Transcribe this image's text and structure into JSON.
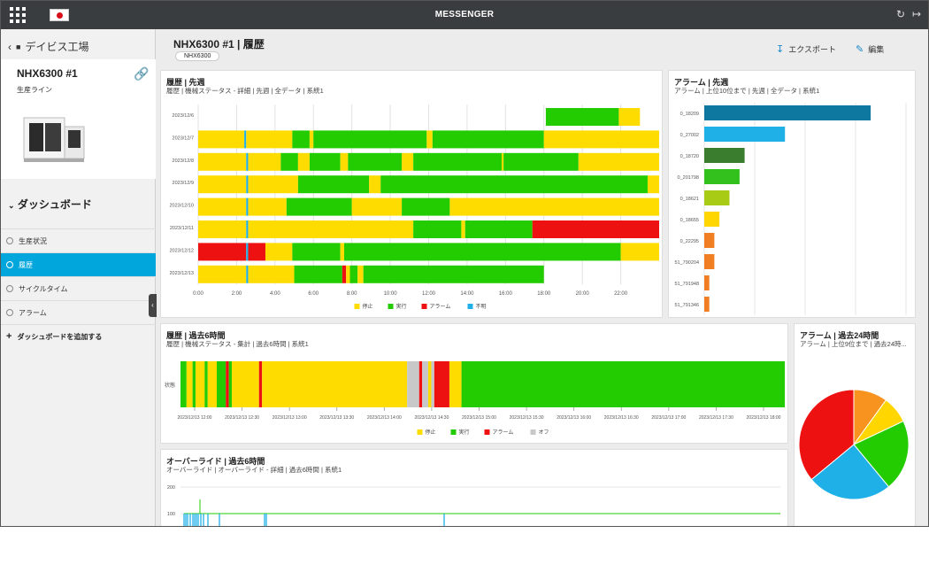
{
  "topbar": {
    "title": "MESSENGER",
    "refresh_icon": "refresh-icon",
    "logout_icon": "logout-icon"
  },
  "sidebar": {
    "back_label": "デイビス工場",
    "machine": {
      "name": "NHX6300 #1",
      "line": "生産ライン"
    },
    "dashboard_heading": "ダッシュボード",
    "items": [
      {
        "label": "生産状況",
        "active": false
      },
      {
        "label": "履歴",
        "active": true
      },
      {
        "label": "サイクルタイム",
        "active": false
      },
      {
        "label": "アラーム",
        "active": false
      }
    ],
    "add_label": "ダッシュボードを追加する"
  },
  "header": {
    "title": "NHX6300 #1 | 履歴",
    "tag": "NHX6300",
    "export_label": "エクスポート",
    "edit_label": "編集"
  },
  "colors": {
    "stop": "#ffdc00",
    "run": "#22cc00",
    "alarm": "#ee1111",
    "unknown": "#1fb0e8",
    "off": "#c8c8c8"
  },
  "panels": {
    "history_week": {
      "title": "履歴 | 先週",
      "subtitle": "履歴 | 機械ステータス - 詳細 | 先週 | 全データ | 系統1",
      "chart_data": {
        "type": "timeline",
        "dates": [
          "2023/12/6",
          "2023/12/7",
          "2023/12/8",
          "2023/12/9",
          "2023/12/10",
          "2023/12/11",
          "2023/12/12",
          "2023/12/13"
        ],
        "x_ticks": [
          "0:00",
          "2:00",
          "4:00",
          "6:00",
          "8:00",
          "10:00",
          "12:00",
          "14:00",
          "16:00",
          "18:00",
          "20:00",
          "22:00"
        ],
        "legend": [
          "停止",
          "実行",
          "アラーム",
          "不明"
        ],
        "rows": [
          [
            [
              "run",
              18.1,
              21.9
            ],
            [
              "stop",
              21.9,
              23.0
            ]
          ],
          [
            [
              "stop",
              0,
              2.4
            ],
            [
              "unknown",
              2.4,
              2.5
            ],
            [
              "stop",
              2.5,
              4.9
            ],
            [
              "run",
              4.9,
              5.8
            ],
            [
              "stop",
              5.8,
              6.0
            ],
            [
              "run",
              6.0,
              11.9
            ],
            [
              "stop",
              11.9,
              12.2
            ],
            [
              "run",
              12.2,
              18.0
            ],
            [
              "stop",
              18.0,
              24.0
            ]
          ],
          [
            [
              "stop",
              0,
              2.5
            ],
            [
              "unknown",
              2.5,
              2.6
            ],
            [
              "stop",
              2.6,
              4.3
            ],
            [
              "run",
              4.3,
              5.2
            ],
            [
              "stop",
              5.2,
              5.8
            ],
            [
              "run",
              5.8,
              7.4
            ],
            [
              "stop",
              7.4,
              7.8
            ],
            [
              "run",
              7.8,
              10.6
            ],
            [
              "stop",
              10.6,
              11.2
            ],
            [
              "run",
              11.2,
              15.8
            ],
            [
              "stop",
              15.8,
              15.9
            ],
            [
              "run",
              15.9,
              19.8
            ],
            [
              "stop",
              19.8,
              24.0
            ]
          ],
          [
            [
              "stop",
              0,
              2.5
            ],
            [
              "unknown",
              2.5,
              2.6
            ],
            [
              "stop",
              2.6,
              5.2
            ],
            [
              "run",
              5.2,
              8.9
            ],
            [
              "stop",
              8.9,
              9.5
            ],
            [
              "run",
              9.5,
              23.4
            ],
            [
              "stop",
              23.4,
              24.0
            ]
          ],
          [
            [
              "stop",
              0,
              2.5
            ],
            [
              "unknown",
              2.5,
              2.6
            ],
            [
              "stop",
              2.6,
              4.6
            ],
            [
              "run",
              4.6,
              8.0
            ],
            [
              "stop",
              8.0,
              10.6
            ],
            [
              "run",
              10.6,
              13.1
            ],
            [
              "stop",
              13.1,
              24.0
            ]
          ],
          [
            [
              "stop",
              0,
              2.5
            ],
            [
              "unknown",
              2.5,
              2.6
            ],
            [
              "stop",
              2.6,
              11.2
            ],
            [
              "run",
              11.2,
              13.7
            ],
            [
              "stop",
              13.7,
              13.9
            ],
            [
              "run",
              13.9,
              17.4
            ],
            [
              "alarm",
              17.4,
              24.0
            ]
          ],
          [
            [
              "alarm",
              0,
              2.5
            ],
            [
              "unknown",
              2.5,
              2.6
            ],
            [
              "alarm",
              2.6,
              3.5
            ],
            [
              "stop",
              3.5,
              4.9
            ],
            [
              "run",
              4.9,
              7.4
            ],
            [
              "stop",
              7.4,
              7.6
            ],
            [
              "run",
              7.6,
              22.0
            ],
            [
              "stop",
              22.0,
              24.0
            ]
          ],
          [
            [
              "stop",
              0,
              2.5
            ],
            [
              "unknown",
              2.5,
              2.6
            ],
            [
              "stop",
              2.6,
              5.0
            ],
            [
              "run",
              5.0,
              7.5
            ],
            [
              "alarm",
              7.5,
              7.7
            ],
            [
              "stop",
              7.7,
              7.9
            ],
            [
              "run",
              7.9,
              8.3
            ],
            [
              "stop",
              8.3,
              8.6
            ],
            [
              "run",
              8.6,
              18.0
            ]
          ]
        ]
      }
    },
    "alarm_week": {
      "title": "アラーム | 先週",
      "subtitle": "アラーム | 上位10位まで | 先週 | 全データ | 系統1",
      "chart_data": {
        "type": "bar",
        "orientation": "horizontal",
        "categories": [
          "0_18209",
          "0_27002",
          "0_18720",
          "0_201798",
          "0_18621",
          "0_18655",
          "0_22295",
          "51_790204",
          "51_791948",
          "51_791346"
        ],
        "values": [
          33,
          16,
          8,
          7,
          5,
          3,
          2,
          2,
          1,
          1
        ],
        "bar_colors": [
          "#0e78a0",
          "#1fb0e8",
          "#3a7d2e",
          "#33c11d",
          "#a8cc16",
          "#ffd600",
          "#f07e22",
          "#f07e22",
          "#f07e22",
          "#f07e22"
        ],
        "x_ticks": [
          "0",
          "10",
          "20",
          "30",
          "40"
        ],
        "xlim": [
          0,
          40
        ]
      }
    },
    "history_6h": {
      "title": "履歴 | 過去6時間",
      "subtitle": "履歴 | 機械ステータス - 集計 | 過去6時間 | 系統1",
      "row_label": "状態",
      "chart_data": {
        "type": "timeline",
        "x_ticks": [
          "2023/12/13 12:00",
          "2023/12/13 12:30",
          "2023/12/13 13:00",
          "2023/12/13 13:30",
          "2023/12/13 14:00",
          "2023/12/13 14:30",
          "2023/12/13 15:00",
          "2023/12/13 15:30",
          "2023/12/13 16:00",
          "2023/12/13 16:30",
          "2023/12/13 17:00",
          "2023/12/13 17:30",
          "2023/12/13 18:00"
        ],
        "legend": [
          "停止",
          "実行",
          "アラーム",
          "オフ"
        ],
        "segments": [
          [
            "run",
            0.0,
            0.01
          ],
          [
            "stop",
            0.01,
            0.02
          ],
          [
            "run",
            0.02,
            0.025
          ],
          [
            "stop",
            0.025,
            0.04
          ],
          [
            "run",
            0.04,
            0.045
          ],
          [
            "stop",
            0.045,
            0.06
          ],
          [
            "run",
            0.06,
            0.075
          ],
          [
            "alarm",
            0.075,
            0.08
          ],
          [
            "run",
            0.08,
            0.085
          ],
          [
            "stop",
            0.085,
            0.13
          ],
          [
            "alarm",
            0.13,
            0.135
          ],
          [
            "stop",
            0.135,
            0.375
          ],
          [
            "off",
            0.375,
            0.395
          ],
          [
            "alarm",
            0.395,
            0.4
          ],
          [
            "off",
            0.4,
            0.41
          ],
          [
            "stop",
            0.41,
            0.415
          ],
          [
            "off",
            0.415,
            0.42
          ],
          [
            "alarm",
            0.42,
            0.445
          ],
          [
            "stop",
            0.445,
            0.465
          ],
          [
            "run",
            0.465,
            1.0
          ]
        ]
      }
    },
    "alarm_24h": {
      "title": "アラーム | 過去24時間",
      "subtitle": "アラーム | 上位9位まで | 過去24時...",
      "chart_data": {
        "type": "pie",
        "values": [
          10,
          8,
          21,
          25,
          36
        ],
        "colors": [
          "#f7931e",
          "#ffd600",
          "#22cc00",
          "#1fb0e8",
          "#ee1111"
        ]
      }
    },
    "override_6h": {
      "title": "オーバーライド | 過去6時間",
      "subtitle": "オーバーライド | オーバーライド - 詳細 | 過去6時間 | 系統1",
      "chart_data": {
        "type": "line",
        "y_ticks": [
          "200",
          "100"
        ],
        "baseline": 100
      }
    }
  }
}
